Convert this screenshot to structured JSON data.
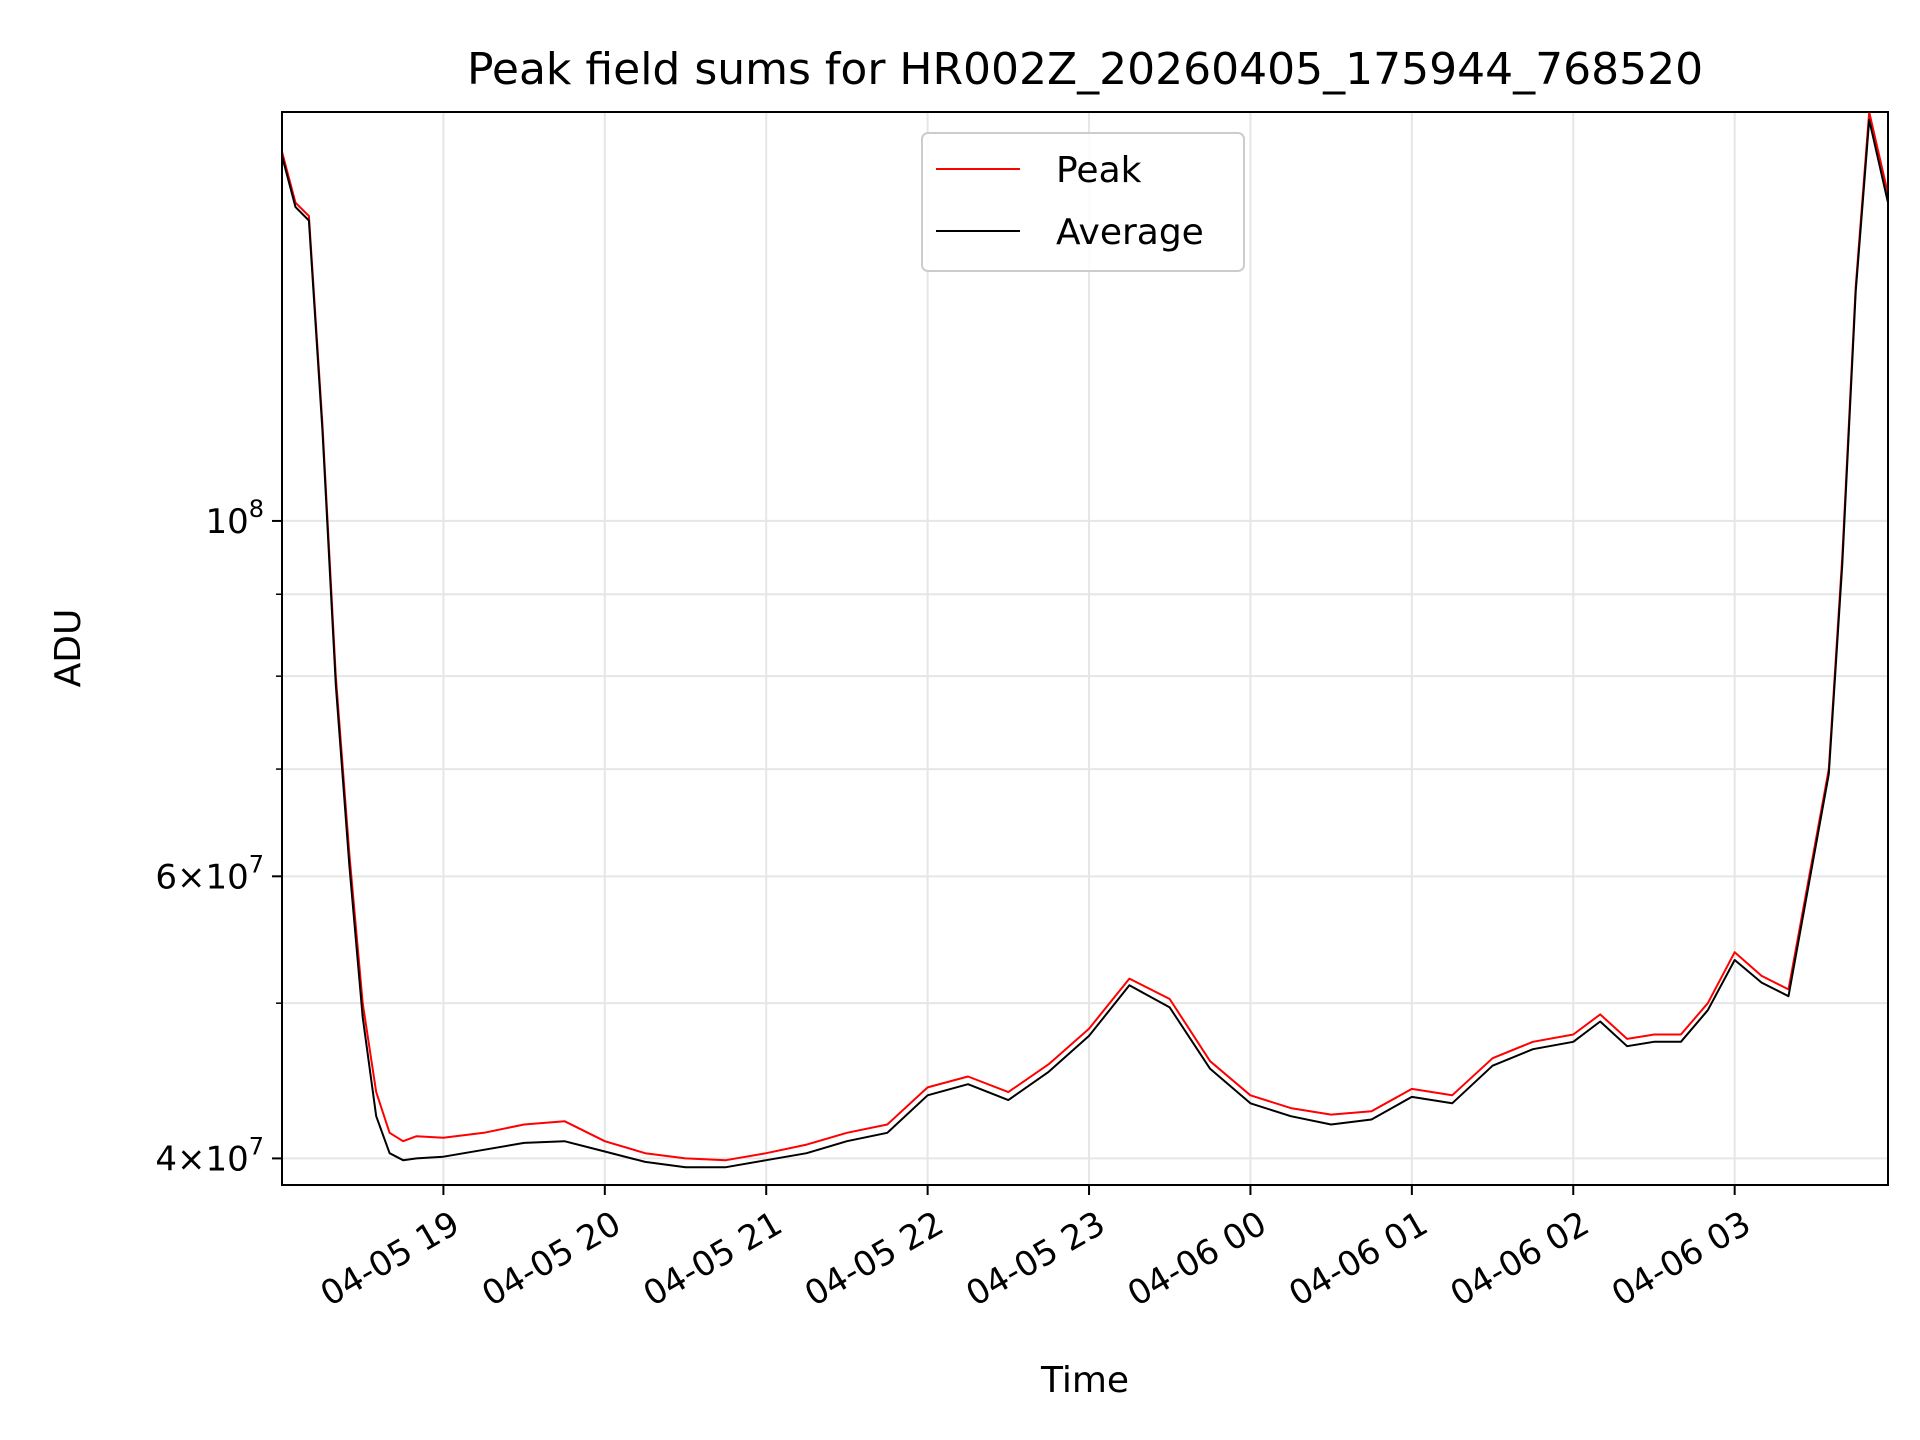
{
  "chart_data": {
    "type": "line",
    "title": "Peak field sums for HR002Z_20260405_175944_768520",
    "xlabel": "Time",
    "ylabel": "ADU",
    "y_scale": "log",
    "ylim": [
      38500000,
      180000000
    ],
    "xlim": [
      "2026-04-05 18:00",
      "2026-04-06 03:57"
    ],
    "grid": true,
    "legend_position": "upper-center",
    "x_ticks": [
      {
        "t": "2026-04-05 19:00",
        "label": "04-05 19"
      },
      {
        "t": "2026-04-05 20:00",
        "label": "04-05 20"
      },
      {
        "t": "2026-04-05 21:00",
        "label": "04-05 21"
      },
      {
        "t": "2026-04-05 22:00",
        "label": "04-05 22"
      },
      {
        "t": "2026-04-05 23:00",
        "label": "04-05 23"
      },
      {
        "t": "2026-04-06 00:00",
        "label": "04-06 00"
      },
      {
        "t": "2026-04-06 01:00",
        "label": "04-06 01"
      },
      {
        "t": "2026-04-06 02:00",
        "label": "04-06 02"
      },
      {
        "t": "2026-04-06 03:00",
        "label": "04-06 03"
      }
    ],
    "y_ticks": [
      {
        "value": 40000000,
        "mantissa": "4",
        "exp": "7"
      },
      {
        "value": 60000000,
        "mantissa": "6",
        "exp": "7"
      },
      {
        "value": 100000000,
        "mantissa": "",
        "exp": "8"
      }
    ],
    "y_minor_ticks": [
      50000000,
      70000000,
      80000000,
      90000000
    ],
    "series": [
      {
        "name": "Peak",
        "color": "#ff0000",
        "x": [
          "2026-04-05 18:00",
          "2026-04-05 18:05",
          "2026-04-05 18:10",
          "2026-04-05 18:15",
          "2026-04-05 18:20",
          "2026-04-05 18:25",
          "2026-04-05 18:30",
          "2026-04-05 18:35",
          "2026-04-05 18:40",
          "2026-04-05 18:45",
          "2026-04-05 18:50",
          "2026-04-05 19:00",
          "2026-04-05 19:15",
          "2026-04-05 19:30",
          "2026-04-05 19:45",
          "2026-04-05 20:00",
          "2026-04-05 20:15",
          "2026-04-05 20:30",
          "2026-04-05 20:45",
          "2026-04-05 21:00",
          "2026-04-05 21:15",
          "2026-04-05 21:30",
          "2026-04-05 21:45",
          "2026-04-05 22:00",
          "2026-04-05 22:15",
          "2026-04-05 22:30",
          "2026-04-05 22:45",
          "2026-04-05 23:00",
          "2026-04-05 23:15",
          "2026-04-05 23:30",
          "2026-04-05 23:45",
          "2026-04-06 00:00",
          "2026-04-06 00:15",
          "2026-04-06 00:30",
          "2026-04-06 00:45",
          "2026-04-06 01:00",
          "2026-04-06 01:15",
          "2026-04-06 01:30",
          "2026-04-06 01:45",
          "2026-04-06 02:00",
          "2026-04-06 02:10",
          "2026-04-06 02:20",
          "2026-04-06 02:30",
          "2026-04-06 02:40",
          "2026-04-06 02:50",
          "2026-04-06 03:00",
          "2026-04-06 03:10",
          "2026-04-06 03:20",
          "2026-04-06 03:30",
          "2026-04-06 03:35",
          "2026-04-06 03:40",
          "2026-04-06 03:45",
          "2026-04-06 03:50",
          "2026-04-06 03:57"
        ],
        "values": [
          170000000,
          158000000,
          155000000,
          115000000,
          80000000,
          62000000,
          50000000,
          44000000,
          41500000,
          41000000,
          41300000,
          41200000,
          41500000,
          42000000,
          42200000,
          41000000,
          40300000,
          40000000,
          39900000,
          40300000,
          40800000,
          41500000,
          42000000,
          44300000,
          45000000,
          44000000,
          45800000,
          48200000,
          51800000,
          50300000,
          46000000,
          43800000,
          43000000,
          42600000,
          42800000,
          44200000,
          43800000,
          46200000,
          47300000,
          47800000,
          49200000,
          47500000,
          47800000,
          47800000,
          50000000,
          53800000,
          52000000,
          51000000,
          63000000,
          70000000,
          95000000,
          140000000,
          180000000,
          160000000
        ]
      },
      {
        "name": "Average",
        "color": "#000000",
        "x": [
          "2026-04-05 18:00",
          "2026-04-05 18:05",
          "2026-04-05 18:10",
          "2026-04-05 18:15",
          "2026-04-05 18:20",
          "2026-04-05 18:25",
          "2026-04-05 18:30",
          "2026-04-05 18:35",
          "2026-04-05 18:40",
          "2026-04-05 18:45",
          "2026-04-05 18:50",
          "2026-04-05 19:00",
          "2026-04-05 19:15",
          "2026-04-05 19:30",
          "2026-04-05 19:45",
          "2026-04-05 20:00",
          "2026-04-05 20:15",
          "2026-04-05 20:30",
          "2026-04-05 20:45",
          "2026-04-05 21:00",
          "2026-04-05 21:15",
          "2026-04-05 21:30",
          "2026-04-05 21:45",
          "2026-04-05 22:00",
          "2026-04-05 22:15",
          "2026-04-05 22:30",
          "2026-04-05 22:45",
          "2026-04-05 23:00",
          "2026-04-05 23:15",
          "2026-04-05 23:30",
          "2026-04-05 23:45",
          "2026-04-06 00:00",
          "2026-04-06 00:15",
          "2026-04-06 00:30",
          "2026-04-06 00:45",
          "2026-04-06 01:00",
          "2026-04-06 01:15",
          "2026-04-06 01:30",
          "2026-04-06 01:45",
          "2026-04-06 02:00",
          "2026-04-06 02:10",
          "2026-04-06 02:20",
          "2026-04-06 02:30",
          "2026-04-06 02:40",
          "2026-04-06 02:50",
          "2026-04-06 03:00",
          "2026-04-06 03:10",
          "2026-04-06 03:20",
          "2026-04-06 03:30",
          "2026-04-06 03:35",
          "2026-04-06 03:40",
          "2026-04-06 03:45",
          "2026-04-06 03:50",
          "2026-04-06 03:57"
        ],
        "values": [
          169000000,
          157000000,
          154000000,
          114000000,
          79000000,
          61000000,
          49000000,
          42500000,
          40300000,
          39900000,
          40000000,
          40100000,
          40500000,
          40900000,
          41000000,
          40400000,
          39800000,
          39500000,
          39500000,
          39900000,
          40300000,
          41000000,
          41500000,
          43800000,
          44500000,
          43500000,
          45300000,
          47700000,
          51300000,
          49700000,
          45500000,
          43300000,
          42500000,
          42000000,
          42300000,
          43700000,
          43300000,
          45700000,
          46800000,
          47300000,
          48700000,
          47000000,
          47300000,
          47300000,
          49500000,
          53200000,
          51500000,
          50500000,
          62500000,
          69500000,
          94000000,
          139000000,
          178000000,
          158000000
        ]
      }
    ]
  }
}
